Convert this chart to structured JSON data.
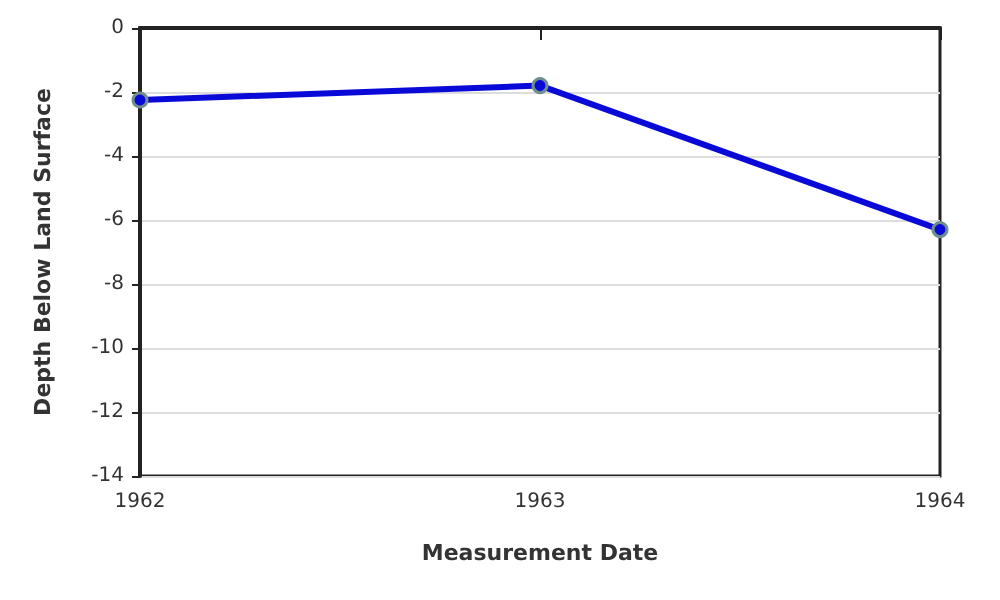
{
  "chart_data": {
    "type": "line",
    "xlabel": "Measurement Date",
    "ylabel": "Depth Below Land Surface",
    "x": [
      1962,
      1963,
      1964
    ],
    "series": [
      {
        "color": "#0a0ad8",
        "values": [
          -2.25,
          -1.8,
          -6.3
        ]
      }
    ],
    "xlim": [
      1962,
      1964
    ],
    "xticks": [
      1962,
      1963,
      1964
    ],
    "ylim": [
      -14,
      0
    ],
    "yticks": [
      -14,
      -12,
      -10,
      -8,
      -6,
      -4,
      -2,
      0
    ],
    "grid": "y",
    "marker": "circle",
    "line_style": "solid"
  }
}
